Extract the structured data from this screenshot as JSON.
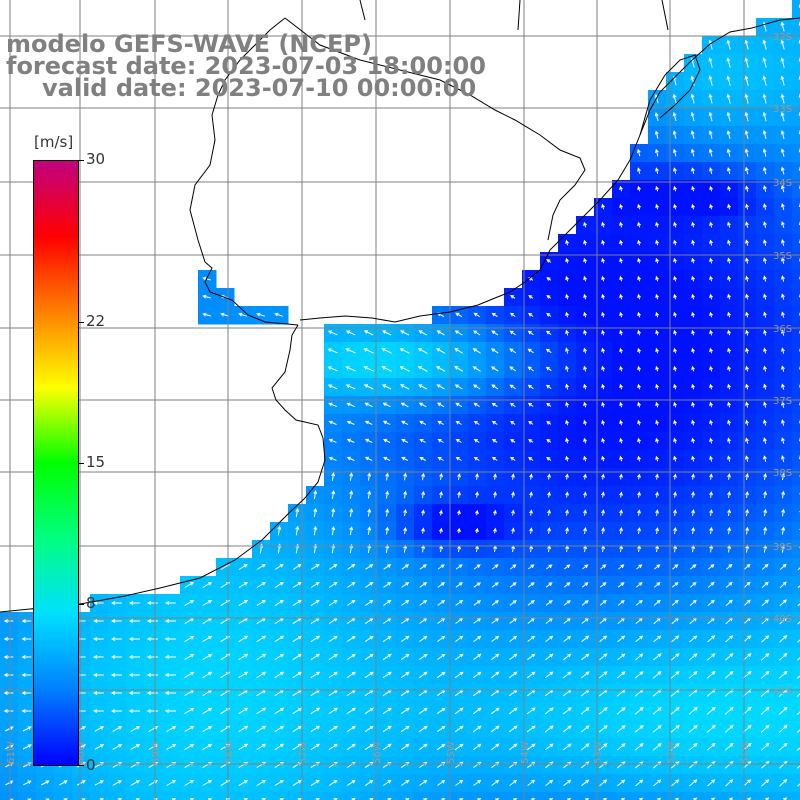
{
  "title": {
    "line1": "modelo GEFS-WAVE (NCEP)",
    "line2": "forecast date: 2023-07-03 18:00:00",
    "line3": "valid date: 2023-07-10 00:00:00"
  },
  "colorbar": {
    "unit": "[m/s]",
    "ticks": [
      "30",
      "22",
      "15",
      "8",
      "0"
    ],
    "tick_values": [
      30,
      22,
      15,
      8,
      0
    ],
    "range": [
      0,
      30
    ],
    "colors": [
      "#0000ff",
      "#0080ff",
      "#00e0ff",
      "#00ff80",
      "#00ff00",
      "#ffff00",
      "#ff8000",
      "#ff0000",
      "#c0007f"
    ]
  },
  "map": {
    "region": "Rio de la Plata / Uruguay / southern Brazil coast",
    "field": "wind speed with direction arrows",
    "lat_labels": [
      "32S",
      "33S",
      "34S",
      "35S",
      "36S",
      "37S",
      "38S",
      "39S",
      "40S",
      "41S"
    ],
    "lon_labels": [
      "61W",
      "60W",
      "59W",
      "58W",
      "57W",
      "56W",
      "55W",
      "54W",
      "53W",
      "52W",
      "51W"
    ],
    "colors": {
      "land": "#ffffff",
      "grid": "#808080",
      "coast": "#000000",
      "arrow": "#ffffff"
    }
  }
}
